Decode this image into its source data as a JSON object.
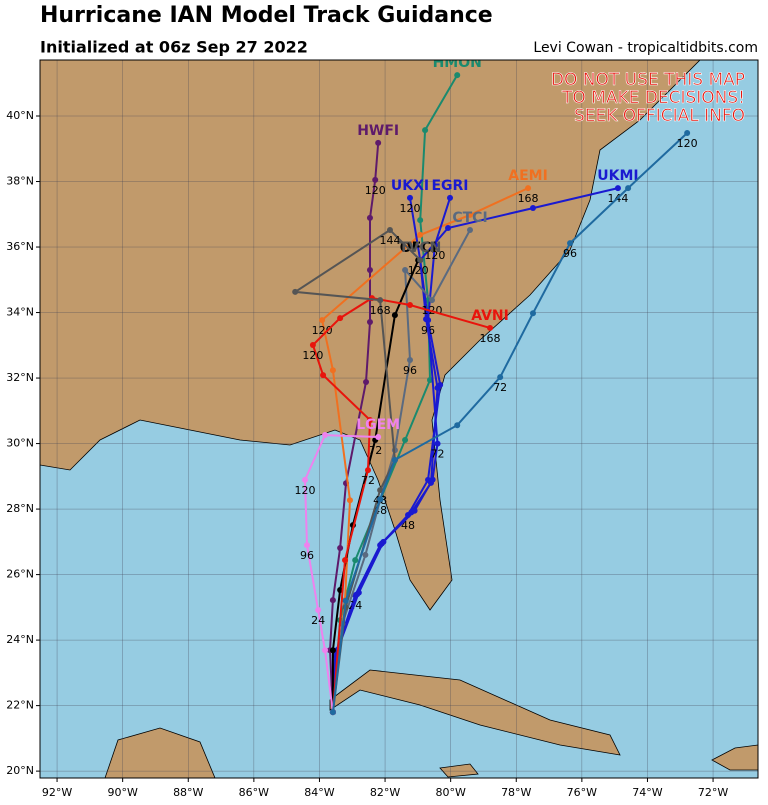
{
  "header": {
    "title": "Hurricane IAN Model Track Guidance",
    "subtitle": "Initialized at 06z Sep 27 2022",
    "credit": "Levi Cowan - tropicaltidbits.com"
  },
  "warning": [
    "DO NOT USE THIS MAP",
    "TO MAKE DECISIONS!",
    "SEEK OFFICIAL INFO"
  ],
  "map": {
    "xlim": [
      -92.52,
      -70.63
    ],
    "ylim": [
      19.79,
      41.71
    ],
    "xticks": [
      {
        "value": -92,
        "label": "92°W"
      },
      {
        "value": -90,
        "label": "90°W"
      },
      {
        "value": -88,
        "label": "88°W"
      },
      {
        "value": -86,
        "label": "86°W"
      },
      {
        "value": -84,
        "label": "84°W"
      },
      {
        "value": -82,
        "label": "82°W"
      },
      {
        "value": -80,
        "label": "80°W"
      },
      {
        "value": -78,
        "label": "78°W"
      },
      {
        "value": -76,
        "label": "76°W"
      },
      {
        "value": -74,
        "label": "74°W"
      },
      {
        "value": -72,
        "label": "72°W"
      }
    ],
    "yticks": [
      {
        "value": 20,
        "label": "20°N"
      },
      {
        "value": 22,
        "label": "22°N"
      },
      {
        "value": 24,
        "label": "24°N"
      },
      {
        "value": 26,
        "label": "26°N"
      },
      {
        "value": 28,
        "label": "28°N"
      },
      {
        "value": 30,
        "label": "30°N"
      },
      {
        "value": 32,
        "label": "32°N"
      },
      {
        "value": 34,
        "label": "34°N"
      },
      {
        "value": 36,
        "label": "36°N"
      },
      {
        "value": 38,
        "label": "38°N"
      },
      {
        "value": 40,
        "label": "40°N"
      }
    ],
    "grid": true,
    "models": [
      {
        "name": "HWFI",
        "color": "#5e1a6b",
        "lon": [
          -83.59,
          -83.68,
          -83.59,
          -83.37,
          -83.19,
          -82.58,
          -82.46,
          -82.46,
          -82.46,
          -82.3,
          -82.21
        ],
        "lat": [
          21.8,
          23.69,
          25.22,
          26.81,
          28.79,
          31.88,
          33.71,
          35.3,
          36.89,
          38.05,
          39.18
        ],
        "point_labels": [
          null,
          null,
          null,
          null,
          null,
          null,
          null,
          null,
          null,
          "120",
          null
        ]
      },
      {
        "name": "HMON",
        "color": "#1a8a6e",
        "lon": [
          -83.59,
          -83.37,
          -82.91,
          -82.15,
          -81.39,
          -80.63,
          -80.69,
          -80.93,
          -80.78,
          -79.8
        ],
        "lat": [
          21.8,
          24.61,
          26.44,
          28.27,
          30.11,
          31.94,
          34.38,
          36.82,
          39.57,
          41.25
        ],
        "point_labels": [
          null,
          null,
          null,
          "48",
          null,
          null,
          null,
          null,
          null,
          null
        ]
      },
      {
        "name": "AEMI",
        "color": "#f07020",
        "lon": [
          -83.59,
          -83.22,
          -83.07,
          -83.59,
          -83.92,
          -80.93,
          -79.41,
          -77.64
        ],
        "lat": [
          21.8,
          25.22,
          28.27,
          32.24,
          33.77,
          36.37,
          36.98,
          37.8
        ],
        "point_labels": [
          null,
          null,
          null,
          null,
          "120",
          null,
          null,
          "168"
        ]
      },
      {
        "name": "UKMI",
        "color": "#1a1ad0",
        "lon": [
          -83.59,
          -83.53,
          -82.91,
          -82.15,
          -81.3,
          -80.69,
          -80.32,
          -80.69,
          -80.93,
          -80.08,
          -77.49,
          -74.9
        ],
        "lat": [
          21.8,
          23.54,
          25.37,
          26.9,
          27.82,
          28.89,
          31.79,
          33.77,
          35.6,
          36.58,
          37.19,
          37.8
        ],
        "point_labels": [
          null,
          null,
          "24",
          null,
          "48",
          null,
          null,
          "96",
          null,
          null,
          null,
          "144"
        ]
      },
      {
        "name": "UKXI",
        "color": "#1a1ad0",
        "lon": [
          -83.59,
          -83.5,
          -82.85,
          -82.1,
          -81.2,
          -80.6,
          -80.4,
          -80.75,
          -80.93,
          -81.24
        ],
        "lat": [
          21.8,
          23.6,
          25.4,
          26.95,
          27.9,
          28.8,
          31.7,
          33.8,
          35.6,
          37.5
        ],
        "point_labels": [
          null,
          null,
          null,
          null,
          null,
          null,
          null,
          null,
          null,
          "120"
        ]
      },
      {
        "name": "EGRI",
        "color": "#1a1ad0",
        "lon": [
          -83.59,
          -83.45,
          -82.8,
          -82.05,
          -81.1,
          -80.55,
          -80.4,
          -80.69,
          -80.48,
          -80.02
        ],
        "lat": [
          21.8,
          23.7,
          25.45,
          27.0,
          27.95,
          28.9,
          30.0,
          33.77,
          36.06,
          37.5
        ],
        "point_labels": [
          null,
          null,
          null,
          null,
          null,
          null,
          "72",
          null,
          "120",
          null
        ]
      },
      {
        "name": "CTCI",
        "color": "#5a6a80",
        "lon": [
          -83.59,
          -83.3,
          -82.6,
          -82.15,
          -81.7,
          -81.24,
          -81.39,
          -80.57,
          -79.41
        ],
        "lat": [
          21.8,
          24.5,
          26.6,
          28.27,
          29.8,
          32.55,
          35.3,
          34.38,
          36.52
        ],
        "point_labels": [
          null,
          null,
          null,
          null,
          null,
          "96",
          null,
          "120",
          null
        ]
      },
      {
        "name": "OFCI",
        "color": "#000000",
        "lon": [
          -83.59,
          -83.59,
          -83.37,
          -82.98,
          -82.3,
          -81.7,
          -80.99
        ],
        "lat": [
          21.8,
          23.69,
          25.53,
          27.51,
          30.11,
          33.92,
          35.6
        ],
        "point_labels": [
          null,
          null,
          null,
          null,
          "72",
          null,
          "120"
        ]
      },
      {
        "name": "AVNI",
        "color": "#e8140c",
        "lon": [
          -83.59,
          -83.22,
          -82.52,
          -82.46,
          -83.89,
          -84.2,
          -83.37,
          -82.4,
          -81.24,
          -78.8
        ],
        "lat": [
          21.8,
          26.44,
          29.19,
          30.72,
          32.09,
          33.01,
          33.83,
          34.44,
          34.23,
          33.53
        ],
        "point_labels": [
          null,
          null,
          "72",
          null,
          null,
          "120",
          null,
          null,
          null,
          "168"
        ]
      },
      {
        "name": "TVCN",
        "color": "#555555",
        "lon": [
          -83.59,
          -83.2,
          -82.15,
          -81.7,
          -82.15,
          -84.74,
          -81.85,
          -80.93
        ],
        "lat": [
          21.8,
          25.0,
          28.58,
          29.5,
          34.38,
          34.63,
          36.52,
          35.6
        ],
        "point_labels": [
          null,
          null,
          "48",
          null,
          "168",
          null,
          "144",
          null
        ]
      },
      {
        "name": "LGEM",
        "color": "#ee82ee",
        "lon": [
          -83.59,
          -83.83,
          -84.04,
          -84.38,
          -84.44,
          -83.83,
          -82.21
        ],
        "lat": [
          21.8,
          23.69,
          24.92,
          26.9,
          28.89,
          30.26,
          30.2
        ],
        "point_labels": [
          null,
          null,
          "24",
          "96",
          "120",
          null,
          null
        ]
      },
      {
        "name": null,
        "color": "#1f6aa0",
        "lon": [
          -83.59,
          -83.2,
          -82.15,
          -81.7,
          -79.8,
          -78.49,
          -77.49,
          -76.36,
          -74.59,
          -72.79
        ],
        "lat": [
          21.8,
          25.2,
          28.3,
          29.5,
          30.56,
          32.03,
          33.98,
          36.12,
          37.8,
          39.48
        ],
        "point_labels": [
          null,
          null,
          null,
          null,
          null,
          "72",
          null,
          "96",
          null,
          "120"
        ]
      }
    ]
  }
}
